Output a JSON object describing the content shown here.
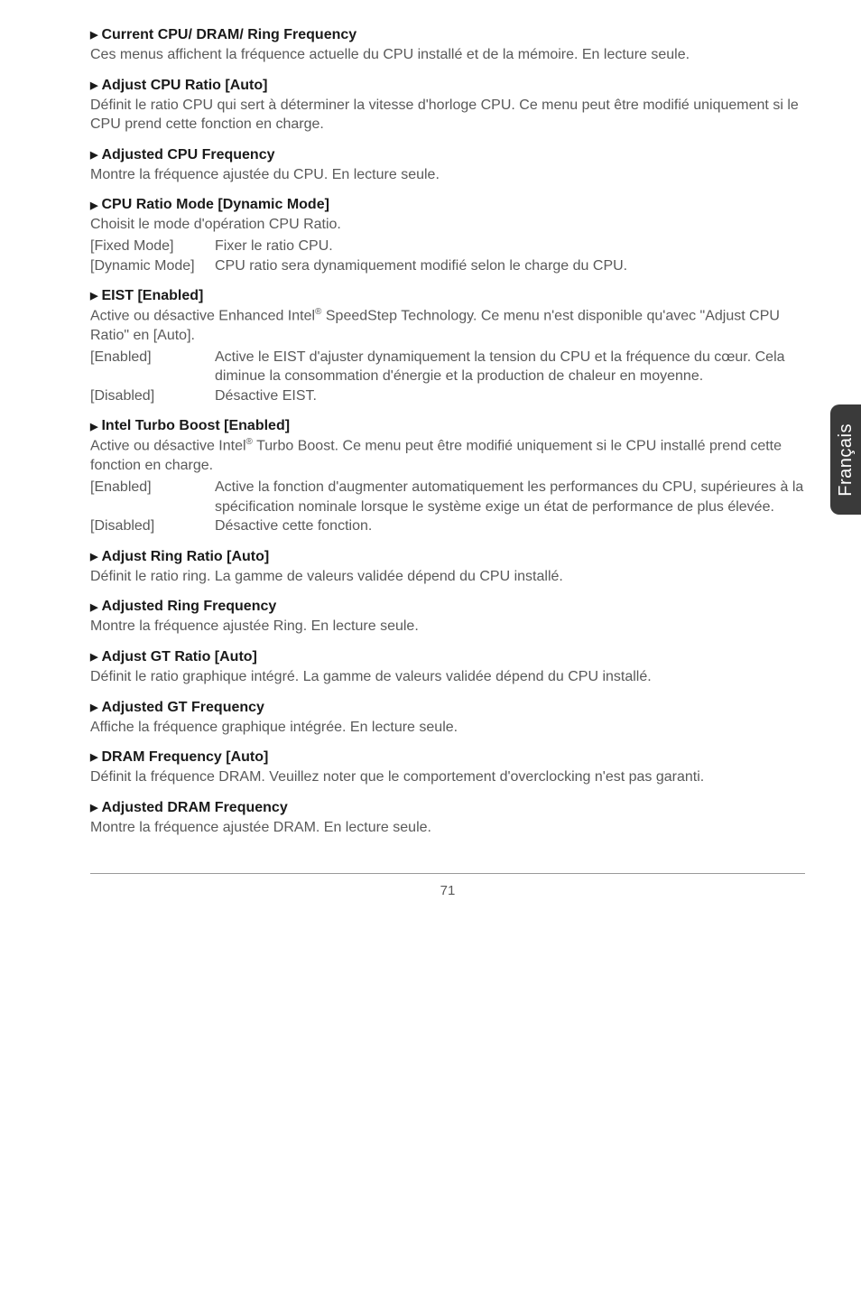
{
  "sideTab": "Français",
  "pageNumber": "71",
  "colors": {
    "heading": "#1a1a1a",
    "body": "#595959",
    "tabBg": "#3a3a3a",
    "tabText": "#ffffff",
    "background": "#ffffff"
  },
  "sections": [
    {
      "title": "Current CPU/ DRAM/ Ring Frequency",
      "body": "Ces menus affichent la fréquence actuelle du CPU installé et de la mémoire. En lecture seule."
    },
    {
      "title": "Adjust CPU Ratio [Auto]",
      "body": "Définit le ratio CPU qui sert à déterminer la vitesse d'horloge CPU. Ce menu peut être modifié uniquement si le CPU prend cette fonction en charge."
    },
    {
      "title": "Adjusted CPU Frequency",
      "body": "Montre la fréquence ajustée du CPU. En lecture seule."
    },
    {
      "title": "CPU Ratio Mode [Dynamic Mode]",
      "body": "Choisit le mode d'opération CPU Ratio.",
      "options": [
        {
          "label": "[Fixed Mode]",
          "desc": "Fixer le ratio CPU."
        },
        {
          "label": "[Dynamic Mode]",
          "desc": "CPU ratio sera dynamiquement modifié selon le charge du CPU."
        }
      ]
    },
    {
      "title": "EIST [Enabled]",
      "bodyPre": "Active ou désactive Enhanced Intel",
      "bodyPost": " SpeedStep Technology. Ce menu n'est disponible qu'avec \"Adjust CPU Ratio\" en [Auto].",
      "sup": "®",
      "options": [
        {
          "label": "[Enabled]",
          "desc": "Active le EIST d'ajuster dynamiquement la tension du CPU et la fréquence du cœur. Cela diminue la consommation d'énergie et la production de chaleur en moyenne."
        },
        {
          "label": "[Disabled]",
          "desc": "Désactive EIST."
        }
      ]
    },
    {
      "title": "Intel Turbo Boost [Enabled]",
      "bodyPre": "Active ou désactive Intel",
      "bodyPost": " Turbo Boost. Ce menu peut être modifié uniquement si le CPU installé prend cette fonction en charge.",
      "sup": "®",
      "options": [
        {
          "label": "[Enabled]",
          "desc": "Active la fonction d'augmenter automatiquement les performances du CPU, supérieures à la spécification nominale lorsque le système exige un état de performance de plus élevée."
        },
        {
          "label": "[Disabled]",
          "desc": "Désactive cette fonction."
        }
      ]
    },
    {
      "title": "Adjust Ring Ratio [Auto]",
      "body": "Définit le ratio ring. La gamme de valeurs validée dépend du CPU installé."
    },
    {
      "title": "Adjusted Ring Frequency",
      "body": "Montre la fréquence ajustée Ring. En lecture seule."
    },
    {
      "title": "Adjust GT Ratio [Auto]",
      "body": "Définit le ratio graphique intégré. La gamme de valeurs validée dépend du CPU installé."
    },
    {
      "title": "Adjusted GT Frequency",
      "body": "Affiche la fréquence graphique intégrée. En lecture seule."
    },
    {
      "title": "DRAM Frequency [Auto]",
      "body": "Définit la fréquence DRAM. Veuillez noter que le comportement d'overclocking n'est pas garanti."
    },
    {
      "title": "Adjusted DRAM Frequency",
      "body": "Montre la fréquence ajustée DRAM. En lecture seule."
    }
  ]
}
